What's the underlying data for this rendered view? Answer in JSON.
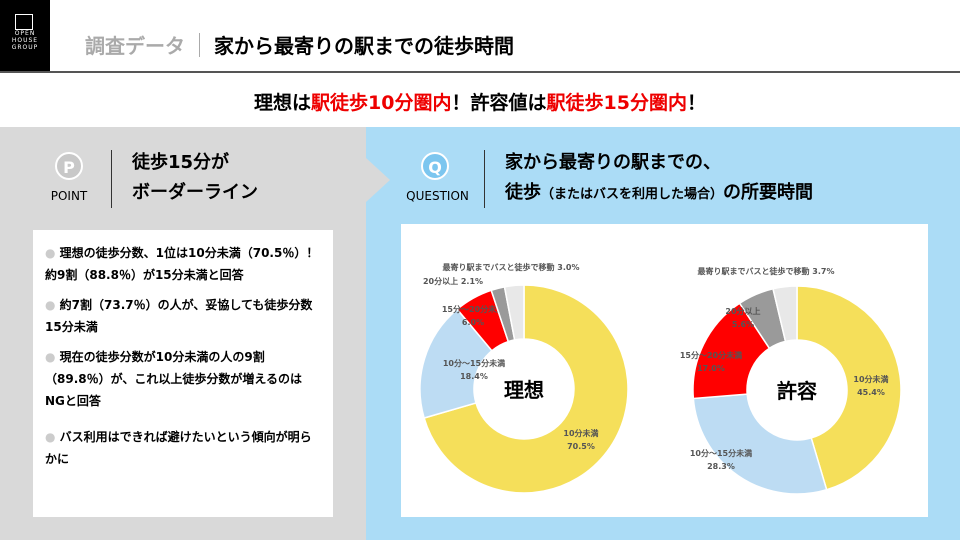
{
  "logo": {
    "text": [
      "OPEN",
      "HOUSE",
      "GROUP"
    ]
  },
  "header": {
    "category": "調査データ",
    "title": "家から最寄りの駅までの徒歩時間"
  },
  "banner": {
    "parts": [
      "理想は",
      "駅徒歩10分圏内",
      "！許容値は",
      "駅徒歩15分圏内",
      "！"
    ]
  },
  "point": {
    "badge": "P",
    "label": "POINT",
    "title_lines": [
      "徒歩15分が",
      "ボーダーライン"
    ],
    "bullets": [
      "理想の徒歩分数、1位は10分未満（70.5％）！約9割（88.8％）が15分未満と回答",
      "約7割（73.7％）の人が、妥協しても徒歩分数15分未満",
      "現在の徒歩分数が10分未満の人の9割（89.8％）が、これ以上徒歩分数が増えるのはNGと回答",
      "バス利用はできれば避けたいという傾向が明らかに"
    ]
  },
  "question": {
    "badge": "Q",
    "label": "QUESTION",
    "title_line1": "家から最寄りの駅までの、",
    "title_line2_a": "徒歩",
    "title_line2_b": "（またはバスを利用した場合）",
    "title_line2_c": "の所要時間"
  },
  "colors": {
    "red": "#ee0000",
    "yellow": "#f5df5a",
    "lightblue": "#bddcf3",
    "red_seg": "#ff0000",
    "gray": "#9a9a9a",
    "lightgray": "#e8e8e8",
    "blue_panel": "#abdcf6"
  },
  "chart_data": [
    {
      "type": "pie",
      "title": "理想",
      "slices": [
        {
          "label": "10分未満",
          "value": 70.5
        },
        {
          "label": "10分〜15分未満",
          "value": 18.4
        },
        {
          "label": "15分〜20分未満",
          "value": 6.0
        },
        {
          "label": "20分以上",
          "value": 2.1
        },
        {
          "label": "最寄り駅までバスと徒歩で移動",
          "value": 3.0
        }
      ]
    },
    {
      "type": "pie",
      "title": "許容",
      "slices": [
        {
          "label": "10分未満",
          "value": 45.4
        },
        {
          "label": "10分〜15分未満",
          "value": 28.3
        },
        {
          "label": "15分〜20分未満",
          "value": 17.0
        },
        {
          "label": "20分以上",
          "value": 5.6
        },
        {
          "label": "最寄り駅までバスと徒歩で移動",
          "value": 3.7
        }
      ]
    }
  ]
}
